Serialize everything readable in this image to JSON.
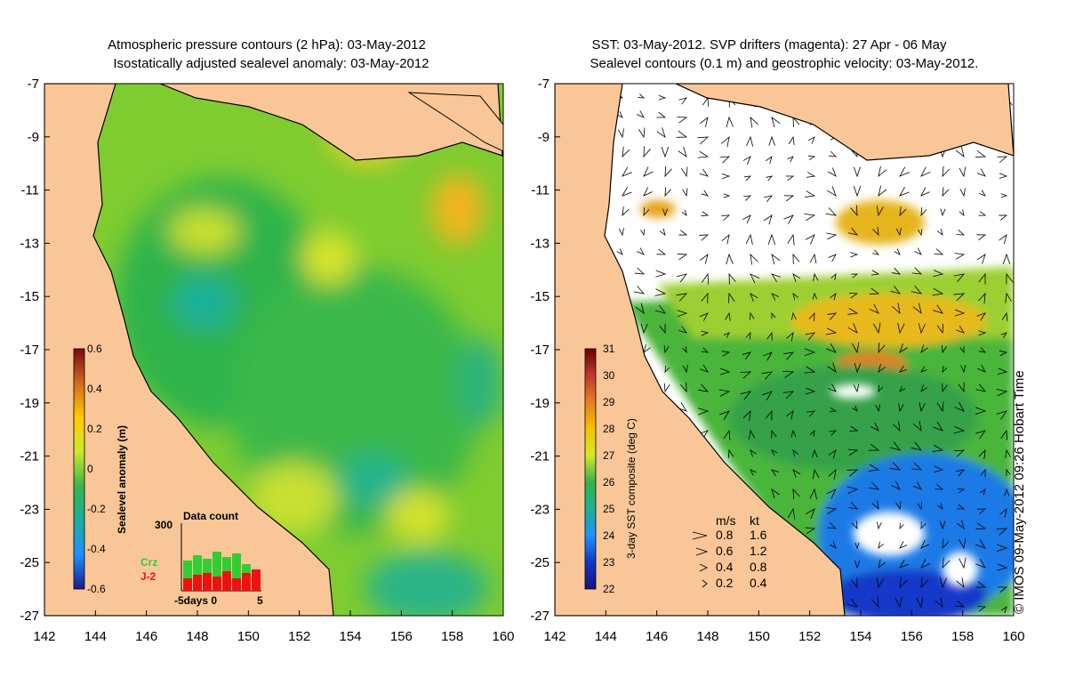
{
  "left_panel": {
    "title_line1": "Atmospheric pressure contours (2 hPa): 03-May-2012",
    "title_line2": "Isostatically adjusted sealevel anomaly: 03-May-2012",
    "colorbar": {
      "label": "Sealevel anomaly (m)",
      "ticks": [
        "0.6",
        "0.4",
        "0.2",
        "0",
        "-0.2",
        "-0.4",
        "-0.6"
      ],
      "colors": [
        "#7a0a0a",
        "#d2691e",
        "#ffcc00",
        "#cde82a",
        "#39b54a",
        "#1aaea0",
        "#1e90ff",
        "#1a1a8c"
      ]
    },
    "inset": {
      "title": "Data count",
      "ymax": "300",
      "xlabel": "-5days 0",
      "xmax": "5",
      "legend_crz": "Crz",
      "legend_j2": "J-2",
      "crz_color": "#33cc33",
      "j2_color": "#ee1111"
    }
  },
  "right_panel": {
    "title_line1": "SST: 03-May-2012. SVP drifters (magenta): 27 Apr - 06 May",
    "title_line2": "Sealevel contours (0.1 m) and geostrophic velocity: 03-May-2012.",
    "colorbar": {
      "label": "3-day SST composite (deg C)",
      "ticks": [
        "31",
        "30",
        "29",
        "28",
        "27",
        "26",
        "25",
        "24",
        "23",
        "22"
      ],
      "colors": [
        "#6b0000",
        "#c0392b",
        "#e67e22",
        "#f5c200",
        "#d4e82a",
        "#33b24a",
        "#1fb09a",
        "#1e90ff",
        "#1238c8",
        "#141480"
      ]
    },
    "velocity_legend": {
      "header_ms": "m/s",
      "header_kt": "kt",
      "rows": [
        {
          "ms": "0.8",
          "kt": "1.6"
        },
        {
          "ms": "0.6",
          "kt": "1.2"
        },
        {
          "ms": "0.4",
          "kt": "0.8"
        },
        {
          "ms": "0.2",
          "kt": "0.4"
        }
      ]
    }
  },
  "axes": {
    "x_ticks": [
      "142",
      "144",
      "146",
      "148",
      "150",
      "152",
      "154",
      "156",
      "158",
      "160"
    ],
    "y_ticks": [
      "-7",
      "-9",
      "-11",
      "-13",
      "-15",
      "-17",
      "-19",
      "-21",
      "-23",
      "-25",
      "-27"
    ]
  },
  "credit": "© IMOS 09-May-2012 09:26 Hobart Time",
  "colors": {
    "land": "#f9c797",
    "ocean_green": "#5dc63e",
    "cloud_white": "#ffffff",
    "coast": "#000000"
  }
}
